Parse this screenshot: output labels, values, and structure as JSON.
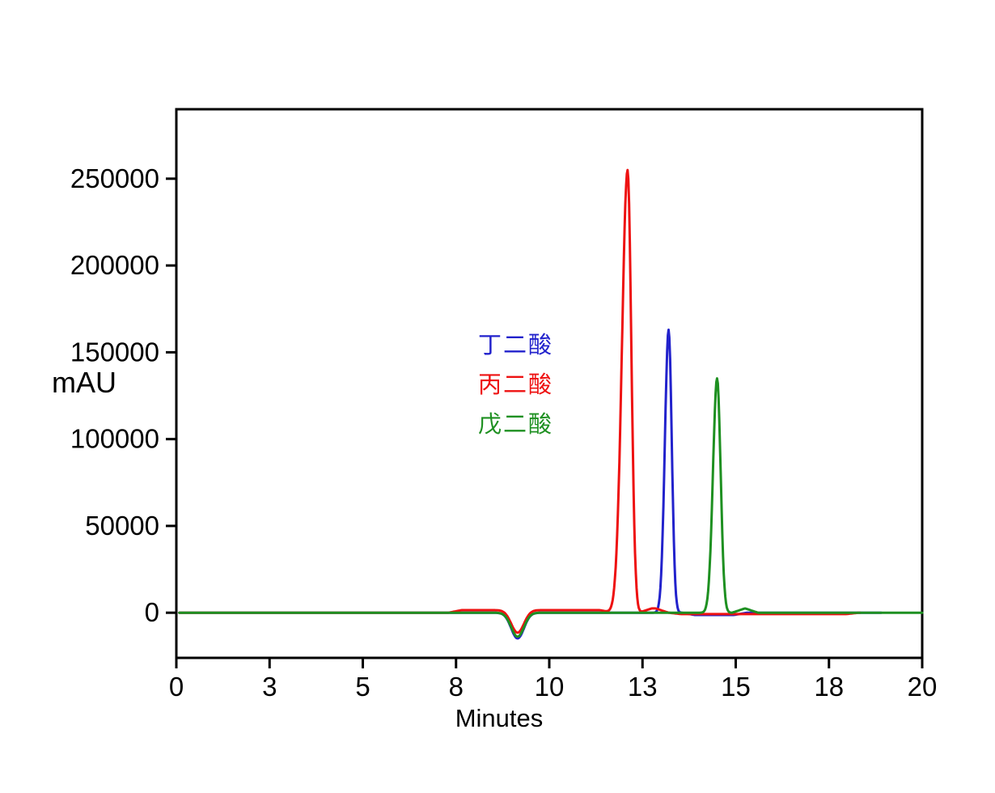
{
  "chart_data": {
    "type": "line",
    "title": "",
    "xlabel": "Minutes",
    "ylabel": "mAU",
    "xlim": [
      0,
      20
    ],
    "ylim": [
      -26000,
      290000
    ],
    "grid": false,
    "legend_position": "inside-center-left",
    "x_ticks": [
      {
        "value": 0,
        "label": "0"
      },
      {
        "value": 2.5,
        "label": "3"
      },
      {
        "value": 5,
        "label": "5"
      },
      {
        "value": 7.5,
        "label": "8"
      },
      {
        "value": 10,
        "label": "10"
      },
      {
        "value": 12.5,
        "label": "13"
      },
      {
        "value": 15,
        "label": "15"
      },
      {
        "value": 17.5,
        "label": "18"
      },
      {
        "value": 20,
        "label": "20"
      }
    ],
    "y_ticks": [
      {
        "value": 0,
        "label": "0"
      },
      {
        "value": 50000,
        "label": "50000"
      },
      {
        "value": 100000,
        "label": "100000"
      },
      {
        "value": 150000,
        "label": "150000"
      },
      {
        "value": 200000,
        "label": "200000"
      },
      {
        "value": 250000,
        "label": "250000"
      }
    ],
    "system_dip": {
      "time": 9.15,
      "sigma": 0.17
    },
    "series": [
      {
        "name": "丁二酸",
        "slug": "succinic-acid",
        "color": "#2222cc",
        "retention_time_min": 13.2,
        "peak_height_mau": 163000,
        "sigma_left": 0.1,
        "sigma_right": 0.085,
        "dip_depth": -14800,
        "t_start": 0.08,
        "t_end": 18.9,
        "baseline_segments": [
          {
            "from": 13.55,
            "to": 15.3,
            "offset": -1300
          }
        ]
      },
      {
        "name": "丙二酸",
        "slug": "malonic-acid",
        "color": "#ee1111",
        "retention_time_min": 12.1,
        "peak_height_mau": 255000,
        "sigma_left": 0.15,
        "sigma_right": 0.1,
        "dip_depth": -13000,
        "t_start": 0.08,
        "t_end": 18.35,
        "baseline_segments": [
          {
            "from": 7.3,
            "to": 11.7,
            "offset": 1500
          },
          {
            "from": 12.4,
            "to": 13.2,
            "offset": 2500
          },
          {
            "from": 13.2,
            "to": 18.3,
            "offset": -800
          }
        ]
      },
      {
        "name": "戊二酸",
        "slug": "glutaric-acid",
        "color": "#1e9021",
        "retention_time_min": 14.5,
        "peak_height_mau": 135000,
        "sigma_left": 0.11,
        "sigma_right": 0.095,
        "dip_depth": -13800,
        "t_start": 0.08,
        "t_end": 20,
        "baseline_segments": [
          {
            "from": 14.9,
            "to": 15.6,
            "offset": 2500
          }
        ]
      }
    ]
  }
}
